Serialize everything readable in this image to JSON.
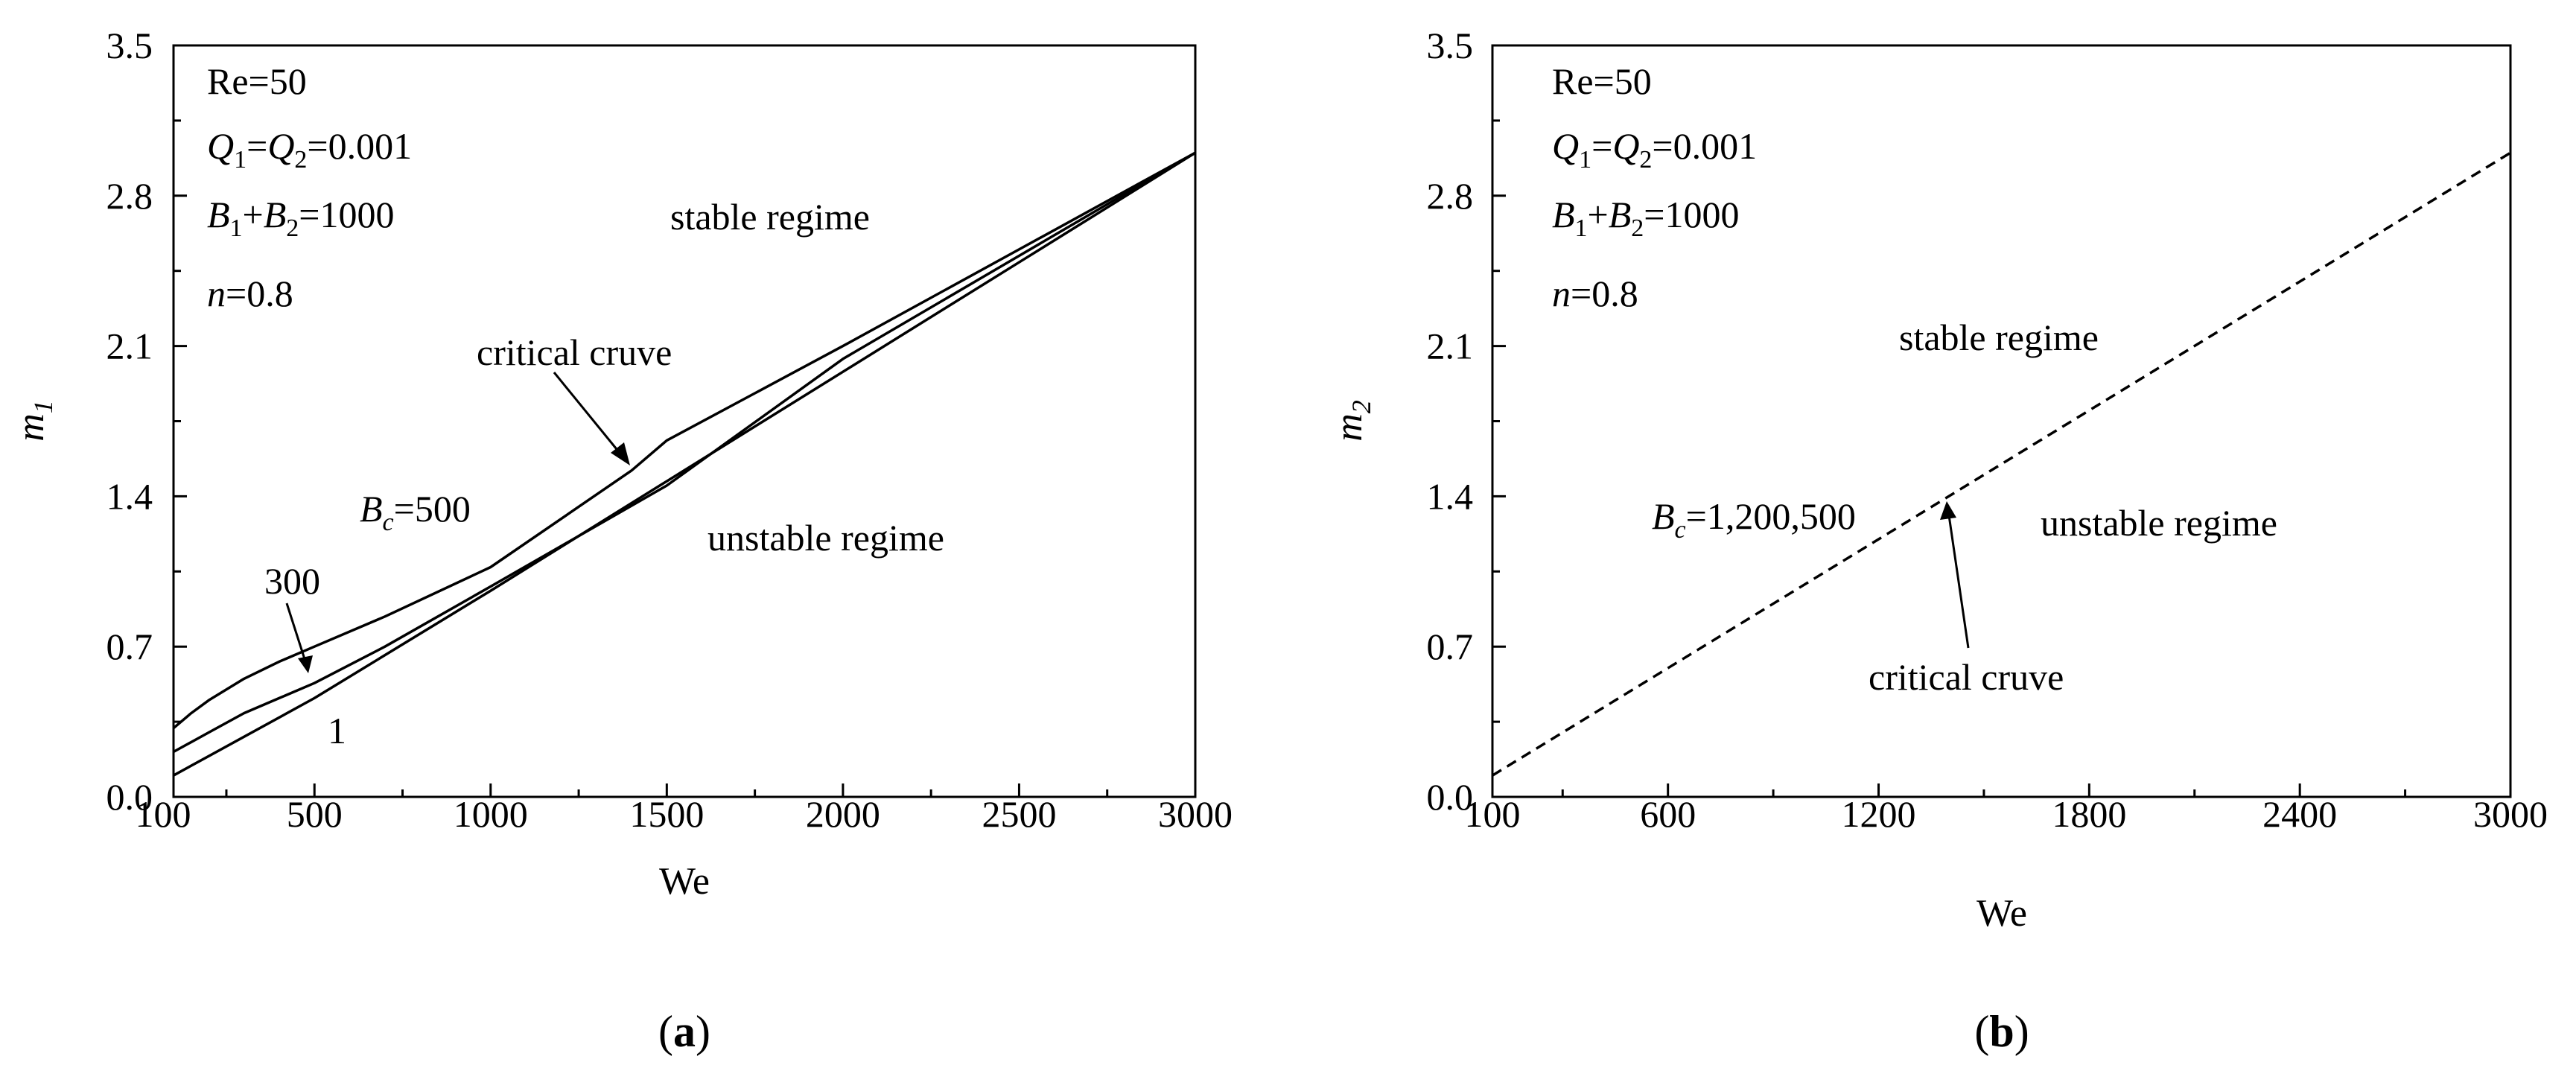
{
  "figure": {
    "panels": [
      {
        "panel_label": "(a)",
        "annotations": {
          "params": [
            "Re=50",
            "Q1=Q2=0.001",
            "B1+B2=1000",
            "n=0.8"
          ],
          "stable": "stable regime",
          "unstable": "unstable regime",
          "critical": "critical cruve",
          "bc_500": "Bc=500",
          "bc_300": "300",
          "bc_1": "1"
        }
      },
      {
        "panel_label": "(b)",
        "annotations": {
          "params": [
            "Re=50",
            "Q1=Q2=0.001",
            "B1+B2=1000",
            "n=0.8"
          ],
          "stable": "stable regime",
          "unstable": "unstable regime",
          "critical": "critical cruve",
          "bc_all": "Bc=1,200,500"
        }
      }
    ]
  },
  "chart_data": [
    {
      "type": "line",
      "panel": "(a)",
      "xlabel": "We",
      "ylabel": "m1",
      "xlim": [
        100,
        3000
      ],
      "ylim": [
        0.0,
        3.5
      ],
      "xticks": [
        100,
        500,
        1000,
        1500,
        2000,
        2500,
        3000
      ],
      "yticks": [
        0.0,
        0.7,
        1.4,
        2.1,
        2.8,
        3.5
      ],
      "series": [
        {
          "name": "Bc=500",
          "style": "solid",
          "x": [
            100,
            150,
            200,
            300,
            400,
            500,
            700,
            1000,
            1400,
            1500,
            2000,
            2500,
            3000
          ],
          "y": [
            0.32,
            0.39,
            0.45,
            0.55,
            0.63,
            0.7,
            0.84,
            1.07,
            1.52,
            1.66,
            2.1,
            2.55,
            3.0
          ]
        },
        {
          "name": "300",
          "style": "solid",
          "x": [
            100,
            200,
            300,
            400,
            500,
            700,
            1000,
            1500,
            2000,
            2500,
            3000
          ],
          "y": [
            0.21,
            0.3,
            0.39,
            0.46,
            0.53,
            0.7,
            0.98,
            1.45,
            2.04,
            2.52,
            3.0
          ]
        },
        {
          "name": "1",
          "style": "solid",
          "x": [
            100,
            500,
            1000,
            1500,
            2000,
            2500,
            3000
          ],
          "y": [
            0.1,
            0.46,
            0.96,
            1.47,
            1.98,
            2.49,
            3.0
          ]
        }
      ]
    },
    {
      "type": "line",
      "panel": "(b)",
      "xlabel": "We",
      "ylabel": "m2",
      "xlim": [
        100,
        3000
      ],
      "ylim": [
        0.0,
        3.5
      ],
      "xticks": [
        100,
        600,
        1200,
        1800,
        2400,
        3000
      ],
      "yticks": [
        0.0,
        0.7,
        1.4,
        2.1,
        2.8,
        3.5
      ],
      "series": [
        {
          "name": "Bc=1,200,500",
          "style": "dashed",
          "x": [
            100,
            3000
          ],
          "y": [
            0.1,
            3.0
          ]
        }
      ]
    }
  ]
}
